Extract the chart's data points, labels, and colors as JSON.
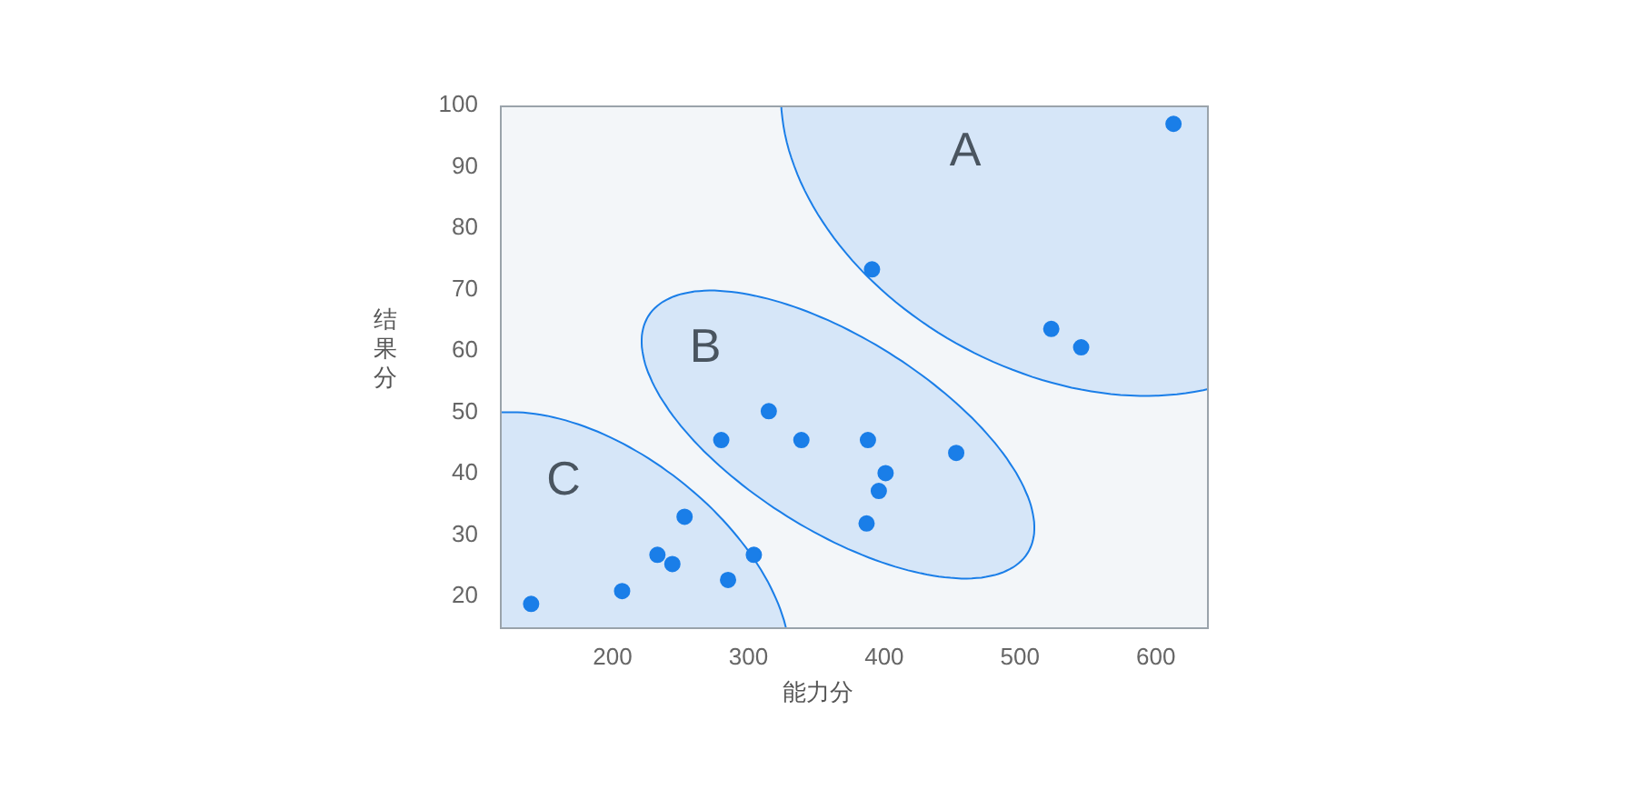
{
  "chart_data": {
    "type": "scatter",
    "xlabel": "能力分",
    "ylabel": "结果分",
    "xlim": [
      117,
      639
    ],
    "ylim": [
      14.7,
      100
    ],
    "xticks": [
      200,
      300,
      400,
      500,
      600
    ],
    "yticks": [
      20,
      30,
      40,
      50,
      60,
      70,
      80,
      90,
      100
    ],
    "grid": false,
    "legend": false,
    "marker": "circle",
    "series": [
      {
        "color": "#1a7ee8",
        "x": [
          140,
          207,
          233,
          244,
          253,
          285,
          304,
          280,
          315,
          339,
          388,
          396,
          401,
          387,
          453,
          391,
          523,
          545,
          613
        ],
        "values": [
          18.8,
          20.9,
          26.8,
          25.3,
          33,
          22.7,
          26.8,
          45.5,
          50.2,
          45.5,
          45.5,
          37.2,
          40.1,
          31.9,
          43.4,
          73.3,
          63.6,
          60.6,
          97
        ]
      }
    ],
    "annotations": [
      "A",
      "B",
      "C"
    ]
  }
}
